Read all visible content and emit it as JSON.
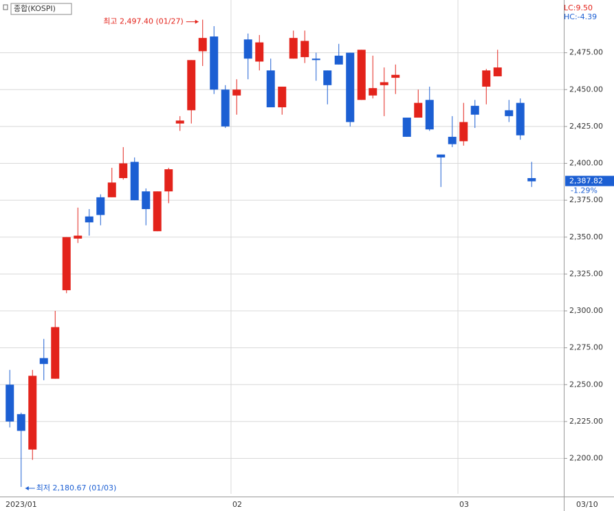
{
  "chart_data": {
    "type": "candlestick",
    "title": "종합(KOSPI)",
    "categories": [
      "2023/01",
      null,
      null,
      null,
      null,
      null,
      null,
      null,
      null,
      null,
      null,
      null,
      null,
      null,
      null,
      null,
      null,
      null,
      null,
      null,
      "02",
      null,
      null,
      null,
      null,
      null,
      null,
      null,
      null,
      null,
      null,
      null,
      null,
      null,
      null,
      null,
      null,
      null,
      null,
      null,
      "03",
      null,
      null,
      null,
      null,
      null,
      null
    ],
    "end_date_label": "03/10",
    "open": [
      2250,
      2230,
      2206,
      2268,
      2254,
      2314,
      2349,
      2364,
      2377,
      2377,
      2390,
      2401,
      2381,
      2354,
      2381,
      2427,
      2436,
      2476,
      2486,
      2450,
      2446,
      2484,
      2469,
      2463,
      2438,
      2471,
      2472,
      2471,
      2463,
      2473,
      2475,
      2443,
      2446,
      2453,
      2458,
      2431,
      2431,
      2443,
      2406,
      2418,
      2415,
      2439,
      2452,
      2459,
      2436,
      2441,
      2390
    ],
    "high": [
      2260,
      2231,
      2260,
      2281,
      2300,
      2350,
      2370,
      2369,
      2379,
      2397,
      2411,
      2404,
      2383,
      2381,
      2397,
      2432,
      2470,
      2497.4,
      2493,
      2453,
      2457,
      2488,
      2487,
      2471,
      2452,
      2490,
      2490,
      2475,
      2463,
      2481,
      2475,
      2477,
      2473,
      2465,
      2467,
      2431,
      2450,
      2452,
      2406,
      2432,
      2441,
      2443,
      2464,
      2477,
      2443,
      2444,
      2401
    ],
    "low": [
      2221,
      2180.67,
      2199,
      2253,
      2254,
      2312,
      2346,
      2351,
      2358,
      2377,
      2389,
      2375,
      2358,
      2354,
      2373,
      2422,
      2427,
      2466,
      2447,
      2424,
      2433,
      2457,
      2463,
      2438,
      2433,
      2471,
      2468,
      2456,
      2440,
      2467,
      2425,
      2443,
      2444,
      2432,
      2447,
      2418,
      2431,
      2422,
      2384,
      2411,
      2412,
      2424,
      2440,
      2459,
      2428,
      2416,
      2384
    ],
    "close": [
      2225,
      2218.68,
      2256,
      2264,
      2289,
      2350,
      2351,
      2360,
      2365,
      2387,
      2400,
      2375,
      2369,
      2381,
      2396,
      2429,
      2470,
      2485,
      2450,
      2425,
      2450,
      2471,
      2482,
      2438,
      2452,
      2485,
      2483,
      2470,
      2453,
      2467,
      2428,
      2477,
      2451,
      2455,
      2460,
      2418,
      2441,
      2423,
      2404,
      2413,
      2428,
      2433,
      2463,
      2465,
      2432,
      2419,
      2387.82
    ],
    "up_color": "#e3231b",
    "down_color": "#1c5fd3",
    "ylim": [
      2176,
      2507
    ],
    "yticks": [
      {
        "value": 2200,
        "label": "2,200.00"
      },
      {
        "value": 2225,
        "label": "2,225.00"
      },
      {
        "value": 2250,
        "label": "2,250.00"
      },
      {
        "value": 2275,
        "label": "2,275.00"
      },
      {
        "value": 2300,
        "label": "2,300.00"
      },
      {
        "value": 2325,
        "label": "2,325.00"
      },
      {
        "value": 2350,
        "label": "2,350.00"
      },
      {
        "value": 2375,
        "label": "2,375.00"
      },
      {
        "value": 2400,
        "label": "2,400.00"
      },
      {
        "value": 2425,
        "label": "2,425.00"
      },
      {
        "value": 2450,
        "label": "2,450.00"
      },
      {
        "value": 2475,
        "label": "2,475.00"
      }
    ],
    "grid": true,
    "high_annotation": "최고 2,497.40 (01/27)",
    "low_annotation": "최저 2,180.67 (01/03)",
    "lc_label": "LC:9.50",
    "hc_label": "HC:-4.39",
    "last_price_label": "2,387.82",
    "change_label": "-1.29%"
  }
}
